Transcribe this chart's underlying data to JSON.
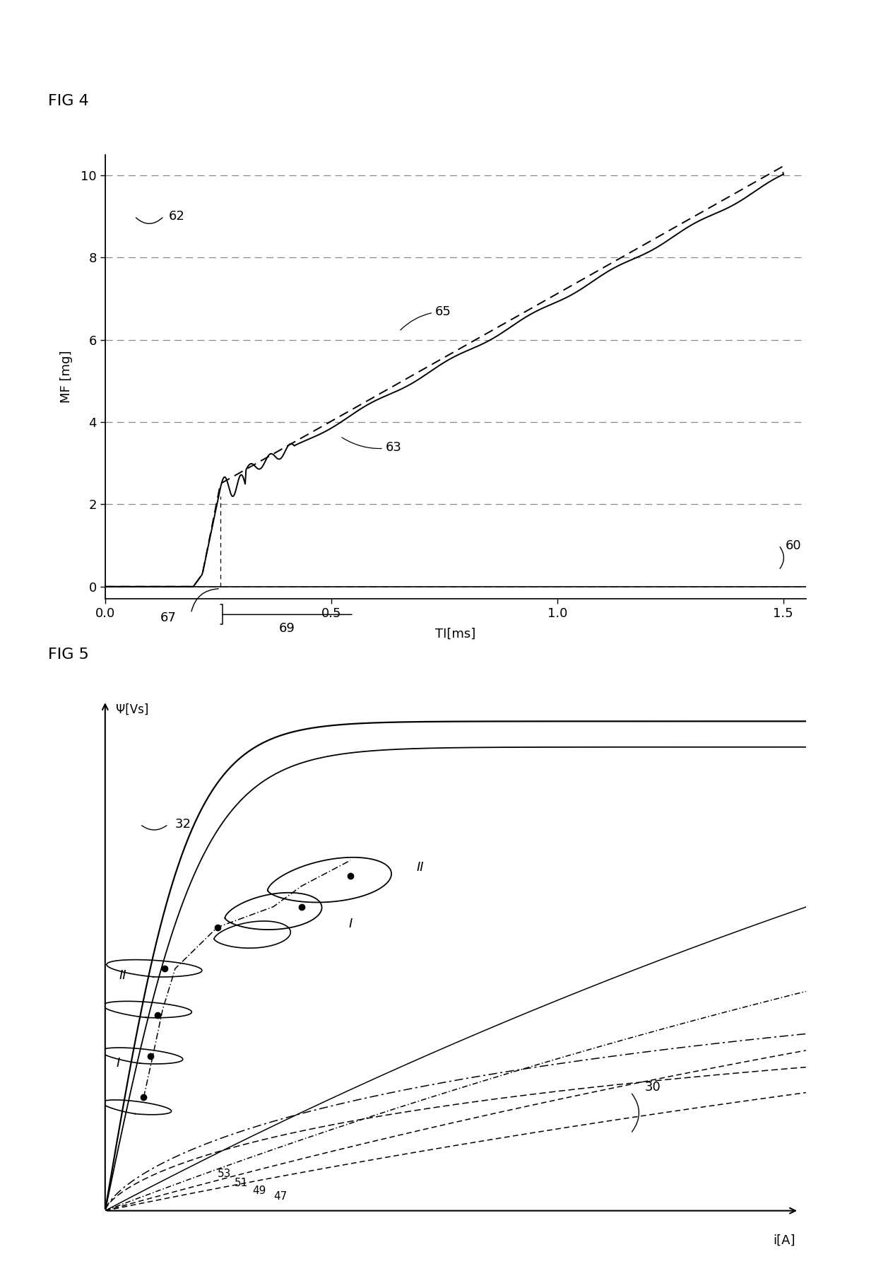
{
  "fig4_title": "FIG 4",
  "fig5_title": "FIG 5",
  "fig4_xlabel": "TI[ms]",
  "fig4_ylabel": "MF [mg]",
  "fig4_xlim": [
    0,
    1.55
  ],
  "fig4_ylim": [
    -0.3,
    10.5
  ],
  "fig4_xticks": [
    0,
    0.5,
    1,
    1.5
  ],
  "fig4_yticks": [
    0,
    2,
    4,
    6,
    8,
    10
  ],
  "fig5_xlabel": "i[A]",
  "fig5_ylabel": "Ψ[Vs]",
  "background_color": "#ffffff",
  "line_color": "#000000",
  "grid_color": "#888888"
}
